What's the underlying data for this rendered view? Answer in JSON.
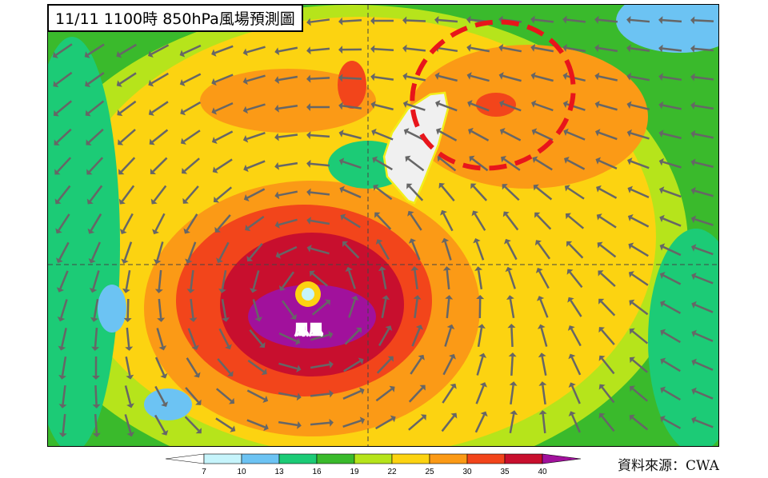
{
  "title": "11/11 1100時  850hPa風場預測圖",
  "typhoon_label": "鳳凰",
  "source": "資料來源：CWA",
  "colorbar": {
    "ticks": [
      "7",
      "10",
      "13",
      "16",
      "19",
      "22",
      "25",
      "30",
      "35",
      "40"
    ],
    "colors": [
      "#ffffff",
      "#c6f4fb",
      "#6cc3f3",
      "#1ccb76",
      "#3aba2c",
      "#b6e41b",
      "#fcd311",
      "#fb9a16",
      "#f2451b",
      "#c80f2e",
      "#a1119c"
    ]
  },
  "highlight": {
    "shape": "dashed-ellipse",
    "color": "#e8151b"
  },
  "icons": {
    "wind": "wind-arrow-icon"
  }
}
